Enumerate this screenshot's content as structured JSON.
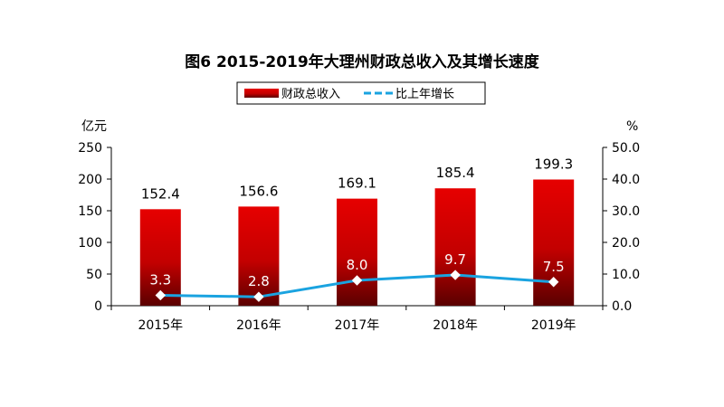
{
  "chart_data": {
    "type": "bar",
    "title": "图6  2015-2019年大理州财政总收入及其增长速度",
    "categories": [
      "2015年",
      "2016年",
      "2017年",
      "2018年",
      "2019年"
    ],
    "series": [
      {
        "name": "财政总收入",
        "type": "bar",
        "axis": "left",
        "values": [
          152.4,
          156.6,
          169.1,
          185.4,
          199.3
        ],
        "color": "#d90000"
      },
      {
        "name": "比上年增长",
        "type": "line",
        "axis": "right",
        "values": [
          3.3,
          2.8,
          8.0,
          9.7,
          7.5
        ],
        "color": "#1aa3e0"
      }
    ],
    "y_left": {
      "unit": "亿元",
      "ylim": [
        0,
        250
      ],
      "ticks": [
        "0",
        "50",
        "100",
        "150",
        "200",
        "250"
      ]
    },
    "y_right": {
      "unit": "%",
      "ylim": [
        0,
        50
      ],
      "ticks": [
        "0.0",
        "10.0",
        "20.0",
        "30.0",
        "40.0",
        "50.0"
      ]
    },
    "legend_position": "top-center",
    "grid": false
  }
}
